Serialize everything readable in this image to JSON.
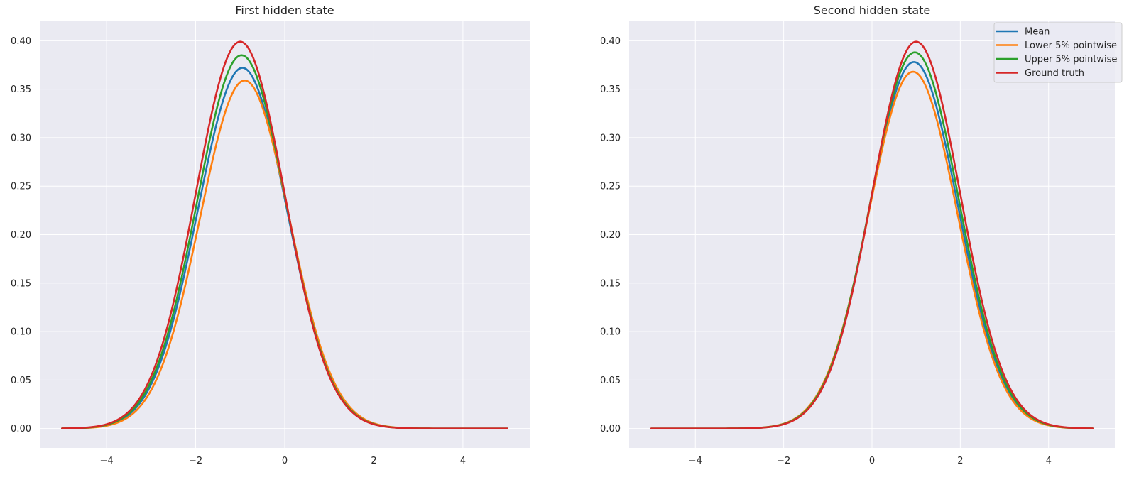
{
  "chart_data": [
    {
      "type": "line",
      "title": "First hidden state",
      "xlabel": "",
      "ylabel": "",
      "xlim": [
        -5.5,
        5.5
      ],
      "ylim": [
        -0.02,
        0.42
      ],
      "xticks": [
        -4,
        -2,
        0,
        2,
        4
      ],
      "xtick_labels": [
        "−4",
        "−2",
        "0",
        "2",
        "4"
      ],
      "yticks": [
        0.0,
        0.05,
        0.1,
        0.15,
        0.2,
        0.25,
        0.3,
        0.35,
        0.4
      ],
      "ytick_labels": [
        "0.00",
        "0.05",
        "0.10",
        "0.15",
        "0.20",
        "0.25",
        "0.30",
        "0.35",
        "0.40"
      ],
      "grid": true,
      "x_range": [
        -5,
        5
      ],
      "series": [
        {
          "name": "Mean",
          "color": "#1f77b4",
          "curve": "gaussian",
          "mean": -0.95,
          "peak": 0.372
        },
        {
          "name": "Lower 5% pointwise",
          "color": "#ff7f0e",
          "curve": "gaussian",
          "mean": -0.9,
          "peak": 0.359
        },
        {
          "name": "Upper 5% pointwise",
          "color": "#2ca02c",
          "curve": "gaussian",
          "mean": -0.97,
          "peak": 0.385
        },
        {
          "name": "Ground truth",
          "color": "#d62728",
          "curve": "gaussian",
          "mean": -1.0,
          "peak": 0.399
        }
      ]
    },
    {
      "type": "line",
      "title": "Second hidden state",
      "xlabel": "",
      "ylabel": "",
      "xlim": [
        -5.5,
        5.5
      ],
      "ylim": [
        -0.02,
        0.42
      ],
      "xticks": [
        -4,
        -2,
        0,
        2,
        4
      ],
      "xtick_labels": [
        "−4",
        "−2",
        "0",
        "2",
        "4"
      ],
      "yticks": [
        0.0,
        0.05,
        0.1,
        0.15,
        0.2,
        0.25,
        0.3,
        0.35,
        0.4
      ],
      "ytick_labels": [
        "0.00",
        "0.05",
        "0.10",
        "0.15",
        "0.20",
        "0.25",
        "0.30",
        "0.35",
        "0.40"
      ],
      "grid": true,
      "legend": "top-right",
      "x_range": [
        -5,
        5
      ],
      "series": [
        {
          "name": "Mean",
          "color": "#1f77b4",
          "curve": "gaussian",
          "mean": 0.95,
          "peak": 0.378
        },
        {
          "name": "Lower 5% pointwise",
          "color": "#ff7f0e",
          "curve": "gaussian",
          "mean": 0.93,
          "peak": 0.368
        },
        {
          "name": "Upper 5% pointwise",
          "color": "#2ca02c",
          "curve": "gaussian",
          "mean": 0.97,
          "peak": 0.388
        },
        {
          "name": "Ground truth",
          "color": "#d62728",
          "curve": "gaussian",
          "mean": 1.0,
          "peak": 0.399
        }
      ]
    }
  ]
}
